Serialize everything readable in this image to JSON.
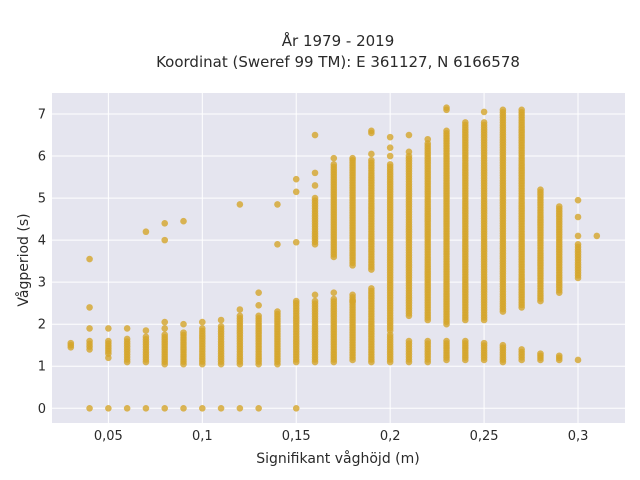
{
  "chart_data": {
    "type": "scatter",
    "title_lines": [
      "År 1979 - 2019",
      "Koordinat (Sweref 99 TM): E 361127, N 6166578"
    ],
    "xlabel": "Signifikant våghöjd (m)",
    "ylabel": "Vågperiod (s)",
    "xlim": [
      0.02,
      0.325
    ],
    "ylim": [
      -0.35,
      7.5
    ],
    "x_ticks": [
      0.05,
      0.1,
      0.15,
      0.2,
      0.25,
      0.3
    ],
    "x_tick_labels": [
      "0,05",
      "0,1",
      "0,15",
      "0,2",
      "0,25",
      "0,3"
    ],
    "y_ticks": [
      0,
      1,
      2,
      3,
      4,
      5,
      6,
      7
    ],
    "y_tick_labels": [
      "0",
      "1",
      "2",
      "3",
      "4",
      "5",
      "6",
      "7"
    ],
    "grid": true,
    "colors": {
      "marker": "#d4a52a",
      "plot_bg": "#e5e5ef",
      "grid": "#ffffff"
    },
    "columns": [
      {
        "x": 0.03,
        "ranges": [
          [
            1.45,
            1.55
          ]
        ]
      },
      {
        "x": 0.04,
        "ranges": [
          [
            1.4,
            1.6
          ]
        ],
        "extra": [
          0,
          1.9,
          2.4,
          3.55
        ]
      },
      {
        "x": 0.05,
        "ranges": [
          [
            1.3,
            1.6
          ]
        ],
        "extra": [
          0,
          1.2,
          1.9
        ]
      },
      {
        "x": 0.06,
        "ranges": [
          [
            1.1,
            1.65
          ]
        ],
        "extra": [
          0,
          1.9
        ]
      },
      {
        "x": 0.07,
        "ranges": [
          [
            1.1,
            1.7
          ]
        ],
        "extra": [
          0,
          1.85,
          4.2
        ]
      },
      {
        "x": 0.08,
        "ranges": [
          [
            1.05,
            1.75
          ]
        ],
        "extra": [
          0,
          1.9,
          2.05,
          4.0,
          4.4
        ]
      },
      {
        "x": 0.09,
        "ranges": [
          [
            1.05,
            1.8
          ]
        ],
        "extra": [
          0,
          2.0,
          4.45
        ]
      },
      {
        "x": 0.1,
        "ranges": [
          [
            1.05,
            1.9
          ]
        ],
        "extra": [
          0,
          2.05
        ]
      },
      {
        "x": 0.11,
        "ranges": [
          [
            1.05,
            1.95
          ]
        ],
        "extra": [
          0,
          2.1
        ]
      },
      {
        "x": 0.12,
        "ranges": [
          [
            1.05,
            2.2
          ]
        ],
        "extra": [
          0,
          2.35,
          4.85
        ]
      },
      {
        "x": 0.13,
        "ranges": [
          [
            1.05,
            2.2
          ]
        ],
        "extra": [
          0,
          2.45,
          2.75
        ]
      },
      {
        "x": 0.14,
        "ranges": [
          [
            1.05,
            2.3
          ]
        ],
        "extra": [
          3.9,
          4.85
        ]
      },
      {
        "x": 0.15,
        "ranges": [
          [
            1.1,
            2.5
          ]
        ],
        "extra": [
          0,
          2.55,
          3.95,
          5.15,
          5.45
        ]
      },
      {
        "x": 0.16,
        "ranges": [
          [
            1.1,
            2.55
          ],
          [
            3.9,
            5.0
          ]
        ],
        "extra": [
          2.7,
          5.3,
          5.6,
          6.5
        ]
      },
      {
        "x": 0.17,
        "ranges": [
          [
            1.1,
            2.6
          ],
          [
            3.6,
            5.8
          ]
        ],
        "extra": [
          2.75,
          5.95
        ]
      },
      {
        "x": 0.18,
        "ranges": [
          [
            1.15,
            2.7
          ],
          [
            3.4,
            5.9
          ]
        ],
        "extra": [
          2.55,
          5.95
        ]
      },
      {
        "x": 0.19,
        "ranges": [
          [
            1.1,
            2.85
          ],
          [
            3.3,
            5.9
          ]
        ],
        "extra": [
          6.05,
          6.55,
          6.6
        ]
      },
      {
        "x": 0.2,
        "ranges": [
          [
            1.1,
            1.75
          ],
          [
            1.85,
            5.8
          ]
        ],
        "extra": [
          6.0,
          6.2,
          6.45
        ]
      },
      {
        "x": 0.21,
        "ranges": [
          [
            1.1,
            1.6
          ],
          [
            2.2,
            6.0
          ]
        ],
        "extra": [
          6.1,
          6.5
        ]
      },
      {
        "x": 0.22,
        "ranges": [
          [
            1.1,
            1.6
          ],
          [
            2.1,
            6.3
          ]
        ],
        "extra": [
          6.4
        ]
      },
      {
        "x": 0.23,
        "ranges": [
          [
            1.15,
            1.6
          ],
          [
            2.0,
            6.6
          ]
        ],
        "extra": [
          7.1,
          7.15
        ]
      },
      {
        "x": 0.24,
        "ranges": [
          [
            1.15,
            1.6
          ],
          [
            2.1,
            6.8
          ]
        ]
      },
      {
        "x": 0.25,
        "ranges": [
          [
            1.15,
            1.55
          ],
          [
            2.1,
            6.8
          ]
        ],
        "extra": [
          7.05
        ]
      },
      {
        "x": 0.26,
        "ranges": [
          [
            1.1,
            1.5
          ],
          [
            2.3,
            7.1
          ]
        ]
      },
      {
        "x": 0.27,
        "ranges": [
          [
            1.15,
            1.4
          ],
          [
            2.4,
            7.1
          ]
        ]
      },
      {
        "x": 0.28,
        "ranges": [
          [
            1.15,
            1.3
          ],
          [
            2.55,
            5.2
          ]
        ]
      },
      {
        "x": 0.29,
        "ranges": [
          [
            1.15,
            1.25
          ],
          [
            2.75,
            4.8
          ]
        ]
      },
      {
        "x": 0.3,
        "ranges": [
          [
            3.1,
            3.9
          ]
        ],
        "extra": [
          1.15,
          4.1,
          4.55,
          4.95
        ]
      },
      {
        "x": 0.31,
        "extra": [
          4.1
        ]
      }
    ]
  }
}
